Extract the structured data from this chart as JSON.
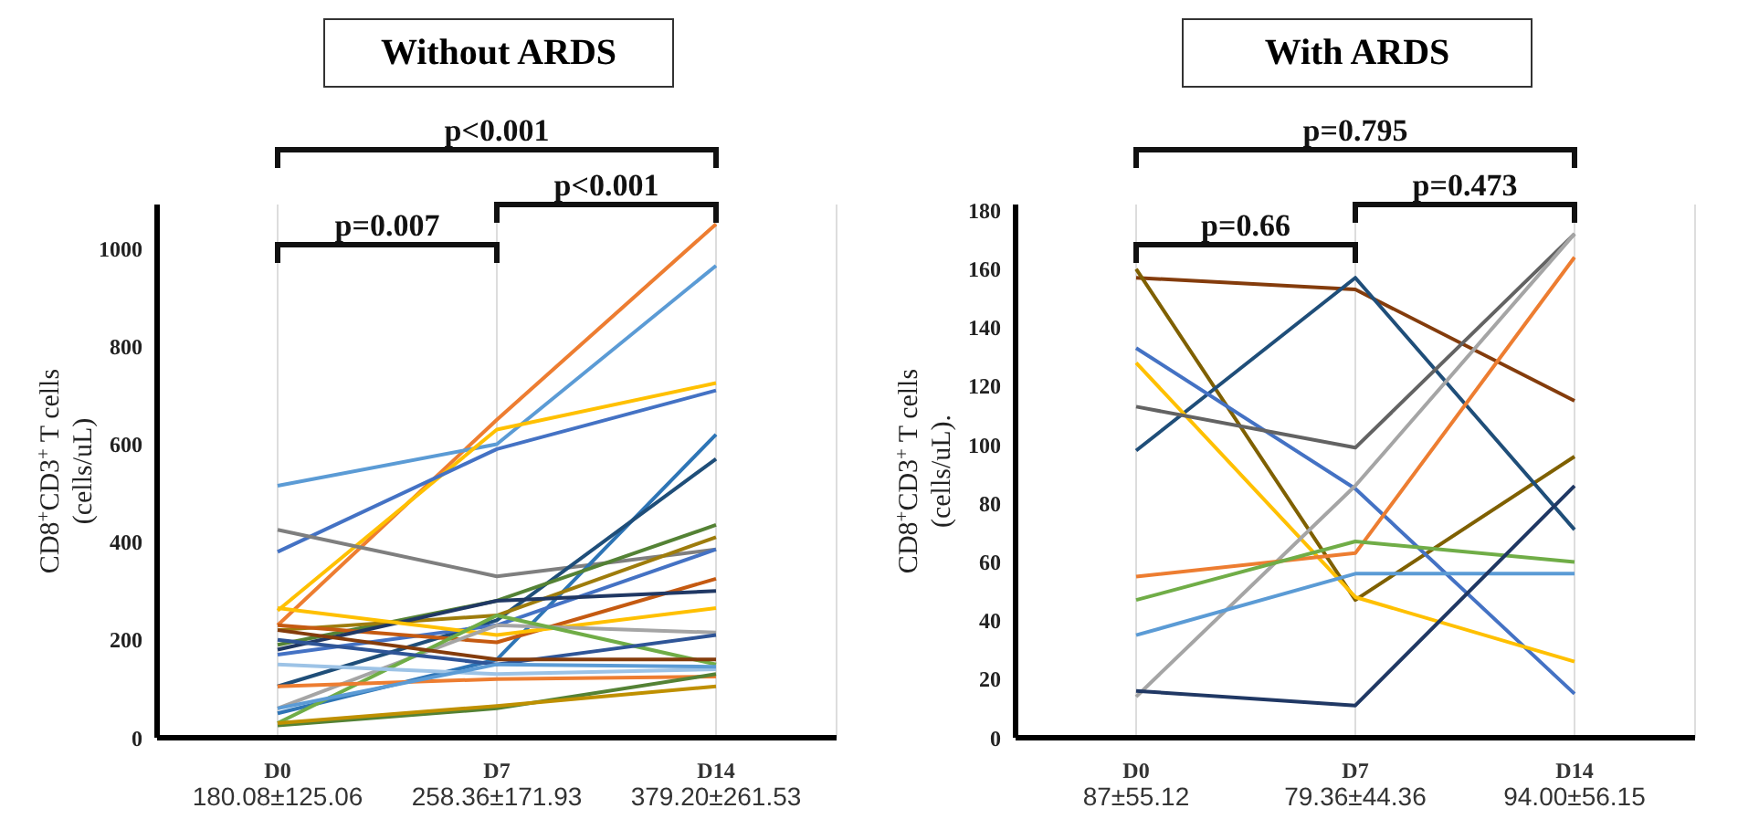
{
  "chart_data": [
    {
      "type": "line",
      "title": "Without ARDS",
      "ylabel": "CD8$^{+}$CD3$^{+}$ T cells (cells/uL)",
      "categories": [
        "D0\n180.08±125.06",
        "D7\n258.36±171.93",
        "D14\n379.20±261.53"
      ],
      "ylim": [
        0,
        1090
      ],
      "yticks": [
        0,
        200,
        400,
        600,
        800,
        1000
      ],
      "grid": "x",
      "annotations": [
        "p<0.001",
        "p=0.007",
        "p<0.001"
      ],
      "series": [
        {
          "color": "#ed7d31",
          "values": [
            230,
            650,
            1050
          ]
        },
        {
          "color": "#5b9bd5",
          "values": [
            515,
            600,
            965
          ]
        },
        {
          "color": "#ffc000",
          "values": [
            260,
            630,
            725
          ]
        },
        {
          "color": "#4472c4",
          "values": [
            380,
            590,
            710
          ]
        },
        {
          "color": "#7f7f7f",
          "values": [
            425,
            330,
            385
          ]
        },
        {
          "color": "#2e75b6",
          "values": [
            50,
            160,
            620
          ]
        },
        {
          "color": "#1f4e79",
          "values": [
            105,
            240,
            570
          ]
        },
        {
          "color": "#548235",
          "values": [
            190,
            280,
            435
          ]
        },
        {
          "color": "#9e7c0c",
          "values": [
            220,
            250,
            410
          ]
        },
        {
          "color": "#4472c4",
          "values": [
            170,
            230,
            385
          ]
        },
        {
          "color": "#c55a11",
          "values": [
            230,
            195,
            325
          ]
        },
        {
          "color": "#203864",
          "values": [
            180,
            280,
            300
          ]
        },
        {
          "color": "#ffc000",
          "values": [
            265,
            210,
            265
          ]
        },
        {
          "color": "#a5a5a5",
          "values": [
            60,
            230,
            215
          ]
        },
        {
          "color": "#70ad47",
          "values": [
            30,
            250,
            150
          ]
        },
        {
          "color": "#2f5597",
          "values": [
            200,
            150,
            210
          ]
        },
        {
          "color": "#843c0c",
          "values": [
            220,
            160,
            160
          ]
        },
        {
          "color": "#9dc3e6",
          "values": [
            150,
            130,
            140
          ]
        },
        {
          "color": "#ed7d31",
          "values": [
            105,
            120,
            125
          ]
        },
        {
          "color": "#548235",
          "values": [
            25,
            60,
            130
          ]
        },
        {
          "color": "#bf9000",
          "values": [
            30,
            65,
            105
          ]
        },
        {
          "color": "#5b9bd5",
          "values": [
            60,
            150,
            145
          ]
        }
      ]
    },
    {
      "type": "line",
      "title": "With ARDS",
      "ylabel": "CD8$^{+}$CD3$^{+}$ T cells (cells/uL).",
      "categories": [
        "D0\n87±55.12",
        "D7\n79.36±44.36",
        "D14\n94.00±56.15"
      ],
      "ylim": [
        0,
        182
      ],
      "yticks": [
        0,
        20,
        40,
        60,
        80,
        100,
        120,
        140,
        160,
        180
      ],
      "grid": "x",
      "annotations": [
        "p=0.795",
        "p=0.66",
        "p=0.473"
      ],
      "series": [
        {
          "color": "#843c0c",
          "values": [
            157,
            153,
            115
          ]
        },
        {
          "color": "#7f6000",
          "values": [
            160,
            47,
            96
          ]
        },
        {
          "color": "#1f4e79",
          "values": [
            98,
            157,
            71
          ]
        },
        {
          "color": "#4472c4",
          "values": [
            133,
            85,
            15
          ]
        },
        {
          "color": "#ffc000",
          "values": [
            128,
            48,
            26
          ]
        },
        {
          "color": "#636363",
          "values": [
            113,
            99,
            172
          ]
        },
        {
          "color": "#a5a5a5",
          "values": [
            14,
            86,
            172
          ]
        },
        {
          "color": "#ed7d31",
          "values": [
            55,
            63,
            164
          ]
        },
        {
          "color": "#70ad47",
          "values": [
            47,
            67,
            60
          ]
        },
        {
          "color": "#5b9bd5",
          "values": [
            35,
            56,
            56
          ]
        },
        {
          "color": "#203864",
          "values": [
            16,
            11,
            86
          ]
        }
      ]
    }
  ]
}
